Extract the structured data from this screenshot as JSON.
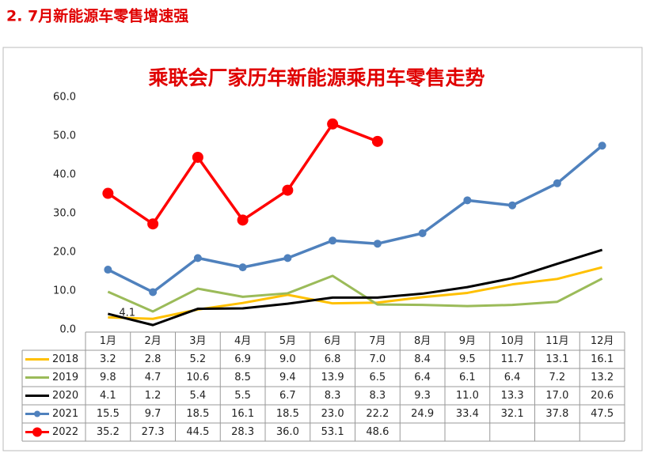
{
  "header": {
    "title": "2. 7月新能源车零售增速强"
  },
  "chart_data": {
    "type": "line",
    "title": "乘联会厂家历年新能源乘用车零售走势",
    "categories": [
      "1月",
      "2月",
      "3月",
      "4月",
      "5月",
      "6月",
      "7月",
      "8月",
      "9月",
      "10月",
      "11月",
      "12月"
    ],
    "ylim": [
      0,
      60
    ],
    "yticks": [
      {
        "value": 0,
        "label": "0.0"
      },
      {
        "value": 10,
        "label": "10.0"
      },
      {
        "value": 20,
        "label": "20.0"
      },
      {
        "value": 30,
        "label": "30.0"
      },
      {
        "value": 40,
        "label": "40.0"
      },
      {
        "value": 50,
        "label": "50.0"
      },
      {
        "value": 60,
        "label": "60.0"
      }
    ],
    "grid": false,
    "legend": "table",
    "series": [
      {
        "name": "2018",
        "color": "#FFC000",
        "marker": false,
        "values": [
          3.2,
          2.8,
          5.2,
          6.9,
          9.0,
          6.8,
          7.0,
          8.4,
          9.5,
          11.7,
          13.1,
          16.1
        ],
        "value_labels": [
          "3.2",
          "2.8",
          "5.2",
          "6.9",
          "9.0",
          "6.8",
          "7.0",
          "8.4",
          "9.5",
          "11.7",
          "13.1",
          "16.1"
        ]
      },
      {
        "name": "2019",
        "color": "#9BBB59",
        "marker": false,
        "values": [
          9.8,
          4.7,
          10.6,
          8.5,
          9.4,
          13.9,
          6.5,
          6.4,
          6.1,
          6.4,
          7.2,
          13.2
        ],
        "value_labels": [
          "9.8",
          "4.7",
          "10.6",
          "8.5",
          "9.4",
          "13.9",
          "6.5",
          "6.4",
          "6.1",
          "6.4",
          "7.2",
          "13.2"
        ]
      },
      {
        "name": "2020",
        "color": "#000000",
        "marker": false,
        "values": [
          4.1,
          1.2,
          5.4,
          5.5,
          6.7,
          8.3,
          8.3,
          9.3,
          11.0,
          13.3,
          17.0,
          20.6
        ],
        "value_labels": [
          "4.1",
          "1.2",
          "5.4",
          "5.5",
          "6.7",
          "8.3",
          "8.3",
          "9.3",
          "11.0",
          "13.3",
          "17.0",
          "20.6"
        ]
      },
      {
        "name": "2021",
        "color": "#4F81BD",
        "marker": true,
        "values": [
          15.5,
          9.7,
          18.5,
          16.1,
          18.5,
          23.0,
          22.2,
          24.9,
          33.4,
          32.1,
          37.8,
          47.5
        ],
        "value_labels": [
          "15.5",
          "9.7",
          "18.5",
          "16.1",
          "18.5",
          "23.0",
          "22.2",
          "24.9",
          "33.4",
          "32.1",
          "37.8",
          "47.5"
        ]
      },
      {
        "name": "2022",
        "color": "#FF0000",
        "marker": true,
        "values": [
          35.2,
          27.3,
          44.5,
          28.3,
          36.0,
          53.1,
          48.6,
          null,
          null,
          null,
          null,
          null
        ],
        "value_labels": [
          "35.2",
          "27.3",
          "44.5",
          "28.3",
          "36.0",
          "53.1",
          "48.6",
          null,
          null,
          null,
          null,
          null
        ]
      }
    ]
  }
}
